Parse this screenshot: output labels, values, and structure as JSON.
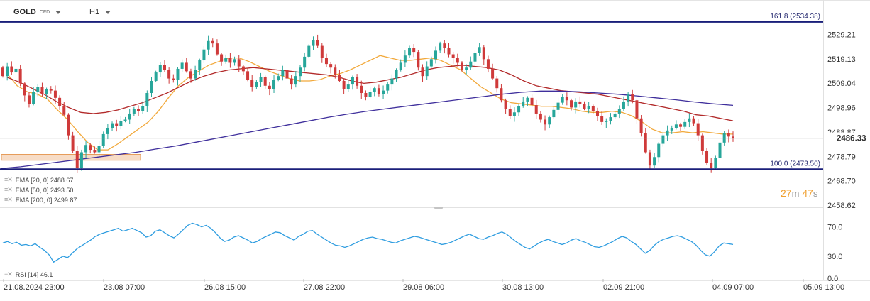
{
  "header": {
    "symbol": "GOLD",
    "badge": "CFD",
    "timeframe": "H1"
  },
  "legend": [
    {
      "label": "EMA [20, 0] 2488.67"
    },
    {
      "label": "EMA [50, 0] 2493.50"
    },
    {
      "label": "EMA [200, 0] 2499.87"
    },
    {
      "label": "RSI [14] 46.1"
    }
  ],
  "timer": {
    "min": "27",
    "min_unit": "m",
    "sec": "47",
    "sec_unit": "s"
  },
  "colors": {
    "up": "#27a69a",
    "down": "#cf3a3a",
    "ema20": "#f2a93b",
    "ema50": "#b22a2a",
    "ema200": "#3f2f9c",
    "fib": "#1a1f7a",
    "rsi": "#2f9de0",
    "price_line": "#9a9a9a",
    "zone_fill": "#f7dcc6",
    "zone_border": "#e69a55"
  },
  "chart_data": [
    {
      "type": "candlestick",
      "title": "GOLD CFD H1",
      "ylim": [
        2458.62,
        2537.0
      ],
      "y_ticks": [
        2458.62,
        2468.7,
        2478.79,
        2488.87,
        2498.96,
        2509.04,
        2519.13,
        2529.21
      ],
      "y_tick_labels": [
        "2458.62",
        "2468.70",
        "2478.79",
        "2488.87",
        "2498.96",
        "2509.04",
        "2519.13",
        "2529.21"
      ],
      "x_tick_labels": [
        "21.08.2024 23:00",
        "23.08 07:00",
        "26.08 15:00",
        "27.08 22:00",
        "29.08 06:00",
        "30.08 13:00",
        "02.09 21:00",
        "04.09 07:00",
        "05.09 13:00"
      ],
      "last_price": 2486.33,
      "last_price_label": "2486.33",
      "fib_levels": [
        {
          "label": "161.8 (2534.38)",
          "value": 2534.38
        },
        {
          "label": "100.0 (2473.50)",
          "value": 2473.5
        }
      ],
      "zone": {
        "from": 2477.2,
        "to": 2479.6
      },
      "ohlc_path": [
        2515.5,
        2512.0,
        2516.0,
        2513.5,
        2515.0,
        2509.0,
        2504.0,
        2500.5,
        2505.5,
        2507.5,
        2504.5,
        2506.5,
        2506.0,
        2503.0,
        2499.5,
        2496.0,
        2487.5,
        2481.0,
        2474.0,
        2480.5,
        2483.5,
        2481.5,
        2480.5,
        2483.0,
        2488.0,
        2490.5,
        2492.5,
        2491.5,
        2493.5,
        2494.0,
        2496.5,
        2498.5,
        2497.5,
        2499.5,
        2505.0,
        2510.0,
        2513.5,
        2516.5,
        2514.5,
        2511.0,
        2510.5,
        2515.0,
        2517.5,
        2514.0,
        2511.0,
        2514.5,
        2518.5,
        2523.0,
        2526.5,
        2525.5,
        2521.0,
        2518.0,
        2519.5,
        2517.5,
        2519.0,
        2516.0,
        2514.0,
        2510.5,
        2507.5,
        2509.5,
        2511.5,
        2508.0,
        2506.5,
        2510.5,
        2512.0,
        2514.5,
        2511.0,
        2508.5,
        2512.0,
        2515.5,
        2520.0,
        2524.5,
        2527.0,
        2524.5,
        2519.5,
        2517.0,
        2515.5,
        2512.5,
        2510.0,
        2506.5,
        2508.5,
        2511.5,
        2508.0,
        2505.0,
        2503.5,
        2505.5,
        2507.0,
        2504.5,
        2506.0,
        2508.5,
        2511.0,
        2514.5,
        2517.5,
        2520.5,
        2523.5,
        2522.0,
        2515.5,
        2512.0,
        2516.0,
        2519.0,
        2522.5,
        2525.5,
        2523.5,
        2521.0,
        2519.5,
        2517.5,
        2514.5,
        2515.5,
        2518.0,
        2521.5,
        2524.0,
        2519.0,
        2515.0,
        2511.0,
        2507.0,
        2502.0,
        2498.5,
        2495.5,
        2497.0,
        2499.5,
        2501.5,
        2503.0,
        2500.0,
        2496.5,
        2494.0,
        2492.0,
        2495.0,
        2498.0,
        2501.0,
        2503.5,
        2502.0,
        2499.0,
        2501.5,
        2500.5,
        2498.5,
        2499.5,
        2497.5,
        2495.5,
        2493.0,
        2493.5,
        2495.0,
        2496.5,
        2498.5,
        2501.5,
        2504.5,
        2502.0,
        2494.5,
        2488.5,
        2480.5,
        2475.0,
        2478.5,
        2484.0,
        2487.5,
        2489.5,
        2490.5,
        2492.0,
        2491.0,
        2493.0,
        2494.5,
        2492.5,
        2487.5,
        2481.0,
        2476.0,
        2474.0,
        2478.0,
        2484.5,
        2488.5,
        2487.0,
        2486.3
      ],
      "series": [
        {
          "name": "EMA [20, 0]",
          "values": [
            2513.0,
            2508.0,
            2505.5,
            2504.5,
            2502.5,
            2498.0,
            2494.0,
            2489.0,
            2484.5,
            2481.5,
            2481.5,
            2484.0,
            2487.0,
            2490.0,
            2493.0,
            2497.5,
            2503.0,
            2508.0,
            2511.5,
            2514.0,
            2516.5,
            2518.0,
            2519.5,
            2519.5,
            2518.0,
            2516.0,
            2514.0,
            2512.5,
            2511.0,
            2510.0,
            2510.0,
            2510.5,
            2512.0,
            2513.0,
            2514.5,
            2516.5,
            2518.5,
            2520.5,
            2519.5,
            2518.5,
            2518.5,
            2519.0,
            2519.5,
            2518.5,
            2516.5,
            2514.5,
            2511.0,
            2507.5,
            2505.0,
            2502.5,
            2501.0,
            2500.5,
            2500.0,
            2499.5,
            2499.5,
            2499.0,
            2498.5,
            2497.5,
            2497.0,
            2497.0,
            2497.5,
            2497.0,
            2495.5,
            2493.0,
            2490.0,
            2488.5,
            2488.5,
            2489.0,
            2488.5,
            2489.0,
            2488.5,
            2488.0,
            2488.0
          ]
        },
        {
          "name": "EMA [50, 0]",
          "values": [
            2511.5,
            2509.5,
            2507.0,
            2504.5,
            2501.5,
            2499.0,
            2497.0,
            2496.5,
            2497.0,
            2498.0,
            2499.5,
            2501.0,
            2503.0,
            2505.0,
            2507.5,
            2510.0,
            2512.0,
            2513.5,
            2514.5,
            2515.0,
            2515.5,
            2515.0,
            2514.5,
            2514.0,
            2513.5,
            2513.0,
            2512.5,
            2511.5,
            2510.0,
            2509.0,
            2509.5,
            2510.5,
            2511.5,
            2513.0,
            2514.5,
            2515.5,
            2516.0,
            2516.5,
            2516.0,
            2515.5,
            2514.5,
            2512.5,
            2510.0,
            2508.0,
            2507.0,
            2506.0,
            2505.5,
            2505.0,
            2504.5,
            2503.5,
            2502.5,
            2501.5,
            2500.5,
            2499.5,
            2498.5,
            2497.5,
            2496.0,
            2495.5,
            2494.5,
            2493.5
          ]
        },
        {
          "name": "EMA [200, 0]",
          "values": [
            2473.8,
            2474.5,
            2475.5,
            2476.5,
            2477.5,
            2478.5,
            2479.5,
            2480.5,
            2481.8,
            2483.0,
            2484.5,
            2486.0,
            2487.5,
            2489.0,
            2490.5,
            2492.0,
            2493.5,
            2495.0,
            2496.3,
            2497.5,
            2498.5,
            2499.5,
            2500.5,
            2501.5,
            2502.5,
            2503.5,
            2504.5,
            2505.3,
            2505.8,
            2505.8,
            2505.5,
            2505.0,
            2504.5,
            2503.8,
            2503.0,
            2502.2,
            2501.3,
            2500.5,
            2499.9
          ]
        }
      ]
    },
    {
      "type": "line",
      "title": "RSI [14]",
      "ylim": [
        0,
        85
      ],
      "y_ticks": [
        0.0,
        30.0,
        70.0
      ],
      "y_tick_labels": [
        "0.0",
        "30.0",
        "70.0"
      ],
      "series": [
        {
          "name": "RSI [14]",
          "values": [
            48,
            50,
            47,
            49,
            45,
            46,
            44,
            47,
            42,
            38,
            32,
            22,
            26,
            30,
            28,
            34,
            40,
            44,
            48,
            52,
            57,
            60,
            62,
            64,
            66,
            68,
            64,
            66,
            68,
            65,
            62,
            56,
            58,
            64,
            66,
            62,
            58,
            55,
            60,
            66,
            72,
            75,
            73,
            70,
            72,
            68,
            62,
            55,
            50,
            52,
            56,
            58,
            55,
            52,
            48,
            50,
            54,
            57,
            60,
            63,
            62,
            58,
            55,
            52,
            57,
            60,
            64,
            65,
            60,
            56,
            52,
            48,
            45,
            44,
            42,
            44,
            47,
            50,
            53,
            55,
            56,
            54,
            53,
            51,
            49,
            48,
            51,
            53,
            55,
            57,
            56,
            54,
            52,
            50,
            48,
            46,
            47,
            49,
            52,
            55,
            58,
            60,
            57,
            54,
            53,
            56,
            58,
            61,
            63,
            60,
            55,
            50,
            46,
            42,
            40,
            44,
            48,
            51,
            53,
            50,
            48,
            46,
            48,
            52,
            54,
            51,
            49,
            46,
            43,
            42,
            44,
            47,
            50,
            54,
            57,
            55,
            50,
            46,
            40,
            34,
            38,
            45,
            50,
            53,
            55,
            57,
            58,
            56,
            53,
            50,
            45,
            38,
            32,
            30,
            36,
            44,
            48,
            47,
            46
          ]
        }
      ]
    }
  ]
}
